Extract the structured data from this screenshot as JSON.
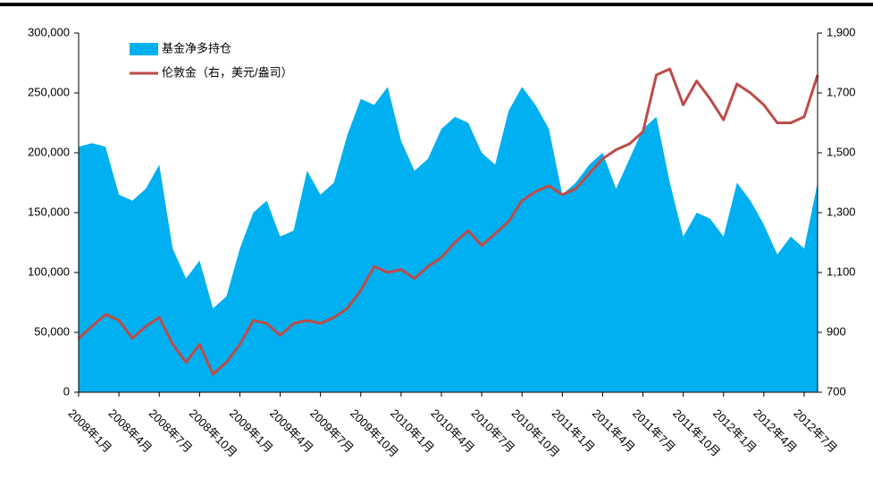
{
  "chart_data": {
    "type": "area-line",
    "categories": [
      "2008年1月",
      null,
      null,
      "2008年4月",
      null,
      null,
      "2008年7月",
      null,
      null,
      "2008年10月",
      null,
      null,
      "2009年1月",
      null,
      null,
      "2009年4月",
      null,
      null,
      "2009年7月",
      null,
      null,
      "2009年10月",
      null,
      null,
      "2010年1月",
      null,
      null,
      "2010年4月",
      null,
      null,
      "2010年7月",
      null,
      null,
      "2010年10月",
      null,
      null,
      "2011年1月",
      null,
      null,
      "2011年4月",
      null,
      null,
      "2011年7月",
      null,
      null,
      "2011年10月",
      null,
      null,
      "2012年1月",
      null,
      null,
      "2012年4月",
      null,
      null,
      "2012年7月",
      null
    ],
    "series": [
      {
        "name": "基金净多持仓",
        "color": "#00b0f0",
        "axis": "y",
        "values": [
          205000,
          208000,
          205000,
          165000,
          160000,
          170000,
          190000,
          120000,
          95000,
          110000,
          70000,
          80000,
          120000,
          150000,
          160000,
          130000,
          135000,
          185000,
          165000,
          175000,
          215000,
          245000,
          240000,
          255000,
          210000,
          185000,
          195000,
          220000,
          230000,
          225000,
          200000,
          190000,
          235000,
          255000,
          240000,
          220000,
          165000,
          175000,
          190000,
          200000,
          170000,
          195000,
          220000,
          230000,
          175000,
          130000,
          150000,
          145000,
          130000,
          175000,
          160000,
          140000,
          115000,
          130000,
          120000,
          175000
        ]
      },
      {
        "name": "伦敦金（右，美元/盎司）",
        "color": "#be4b48",
        "axis": "y2",
        "values": [
          880,
          920,
          960,
          940,
          880,
          920,
          950,
          860,
          800,
          860,
          760,
          800,
          860,
          940,
          930,
          890,
          930,
          940,
          930,
          950,
          980,
          1040,
          1120,
          1100,
          1110,
          1080,
          1120,
          1150,
          1200,
          1240,
          1190,
          1230,
          1270,
          1340,
          1370,
          1390,
          1360,
          1380,
          1430,
          1480,
          1510,
          1530,
          1570,
          1760,
          1780,
          1660,
          1740,
          1680,
          1610,
          1730,
          1700,
          1660,
          1600,
          1600,
          1620,
          1760
        ]
      }
    ],
    "ylim": [
      0,
      300000
    ],
    "yticks": [
      0,
      {
        "value": 50000,
        "label": "50,000"
      },
      {
        "value": 100000,
        "label": "100,000"
      },
      {
        "value": 150000,
        "label": "150,000"
      },
      {
        "value": 200000,
        "label": "200,000"
      },
      {
        "value": 250000,
        "label": "250,000"
      },
      {
        "value": 300000,
        "label": "300,000"
      }
    ],
    "y2lim": [
      700,
      1900
    ],
    "y2ticks": [
      700,
      900,
      {
        "value": 1100,
        "label": "1,100"
      },
      {
        "value": 1300,
        "label": "1,300"
      },
      {
        "value": 1500,
        "label": "1,500"
      },
      {
        "value": 1700,
        "label": "1,700"
      },
      {
        "value": 1900,
        "label": "1,900"
      }
    ],
    "legend": "upper left",
    "grid": false
  }
}
